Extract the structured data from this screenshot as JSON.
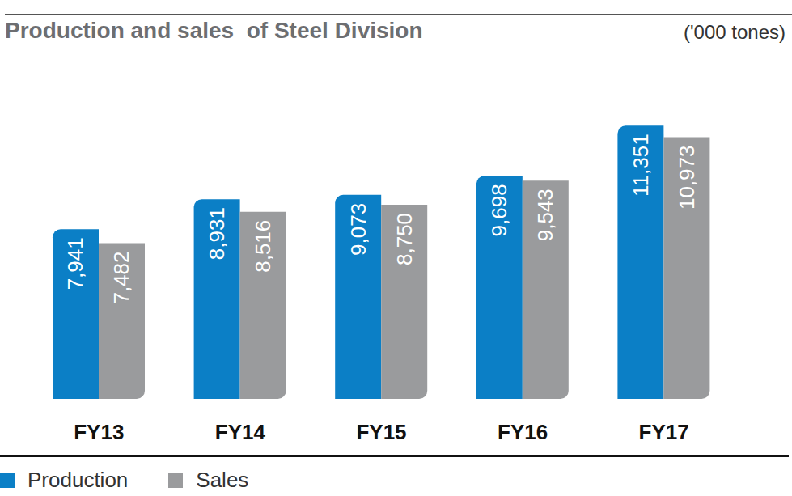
{
  "chart_data": {
    "type": "bar",
    "title": "Production and sales  of Steel Division",
    "subtitle": "('000 tones)",
    "categories": [
      "FY13",
      "FY14",
      "FY15",
      "FY16",
      "FY17"
    ],
    "series": [
      {
        "name": "Production",
        "color": "#0b7fc6",
        "values": [
          7941,
          8931,
          9073,
          9698,
          11351
        ],
        "value_labels": [
          "7,941",
          "8,931",
          "9,073",
          "9,698",
          "11,351"
        ]
      },
      {
        "name": "Sales",
        "color": "#9a9b9d",
        "values": [
          7482,
          8516,
          8750,
          9543,
          10973
        ],
        "value_labels": [
          "7,482",
          "8,516",
          "8,750",
          "9,543",
          "10,973"
        ]
      }
    ],
    "ylim": [
      2350,
      12000
    ],
    "tick_labels": "x",
    "data_labels": true,
    "legend": "bottom-left"
  }
}
